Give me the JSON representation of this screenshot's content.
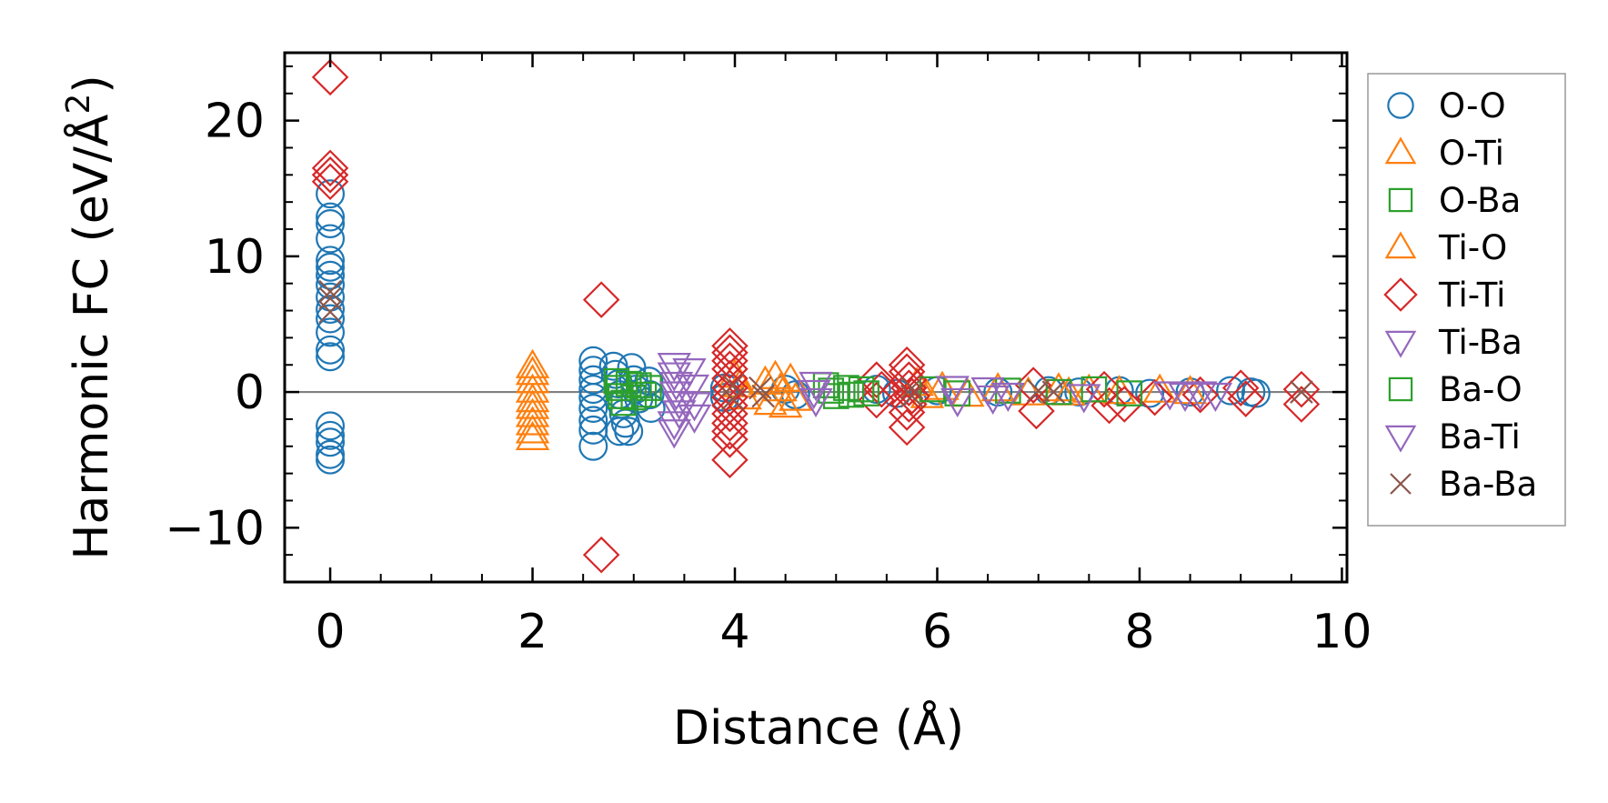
{
  "chart_data": {
    "type": "scatter",
    "title": "",
    "xlabel": "Distance (Å)",
    "ylabel_main": "Harmonic FC (eV/Å",
    "ylabel_sup": "2",
    "ylabel_close": ")",
    "xlim": [
      -0.45,
      10.05
    ],
    "ylim": [
      -14,
      25
    ],
    "xticks": [
      0,
      2,
      4,
      6,
      8,
      10
    ],
    "xtick_labels": [
      "0",
      "2",
      "4",
      "6",
      "8",
      "10"
    ],
    "yticks": [
      -10,
      0,
      10,
      20
    ],
    "ytick_labels": [
      "−10",
      "0",
      "10",
      "20"
    ],
    "zero_line": 0,
    "legend_position": "outside-right",
    "series": [
      {
        "name": "O-O",
        "marker": "circle",
        "filled": false,
        "color": "#1f77b4",
        "points": [
          [
            0,
            14.6
          ],
          [
            0,
            12.9
          ],
          [
            0,
            12.4
          ],
          [
            0,
            11.3
          ],
          [
            0,
            9.7
          ],
          [
            0,
            9.2
          ],
          [
            0,
            8.6
          ],
          [
            0,
            7.9
          ],
          [
            0,
            7.0
          ],
          [
            0,
            6.1
          ],
          [
            0,
            5.4
          ],
          [
            0,
            4.4
          ],
          [
            0,
            3.1
          ],
          [
            0,
            2.6
          ],
          [
            0,
            -2.5
          ],
          [
            0,
            -3.2
          ],
          [
            0,
            -3.7
          ],
          [
            0,
            -4.6
          ],
          [
            0,
            -5.0
          ],
          [
            2.6,
            2.3
          ],
          [
            2.6,
            1.6
          ],
          [
            2.6,
            0.9
          ],
          [
            2.6,
            0.2
          ],
          [
            2.6,
            -0.4
          ],
          [
            2.6,
            -1.2
          ],
          [
            2.6,
            -2.1
          ],
          [
            2.6,
            -2.8
          ],
          [
            2.6,
            -4.0
          ],
          [
            2.8,
            1.9
          ],
          [
            2.82,
            1.3
          ],
          [
            2.85,
            0.6
          ],
          [
            2.86,
            -0.2
          ],
          [
            2.88,
            -0.9
          ],
          [
            2.9,
            -1.6
          ],
          [
            2.92,
            -2.3
          ],
          [
            2.86,
            -2.9
          ],
          [
            2.95,
            -2.9
          ],
          [
            2.98,
            1.8
          ],
          [
            3.0,
            0.9
          ],
          [
            3.02,
            0.2
          ],
          [
            3.05,
            -0.5
          ],
          [
            3.15,
            0.8
          ],
          [
            3.16,
            -0.2
          ],
          [
            3.17,
            -1.2
          ],
          [
            3.9,
            0.3
          ],
          [
            3.9,
            -0.4
          ],
          [
            4.5,
            0.2
          ],
          [
            4.6,
            -0.2
          ],
          [
            5.4,
            0.2
          ],
          [
            5.6,
            -0.1
          ],
          [
            6.0,
            0.1
          ],
          [
            6.6,
            0.0
          ],
          [
            7.1,
            0.1
          ],
          [
            7.4,
            0.0
          ],
          [
            7.8,
            0.1
          ],
          [
            8.1,
            -0.1
          ],
          [
            8.5,
            0.0
          ],
          [
            8.9,
            0.1
          ],
          [
            9.1,
            0.0
          ],
          [
            9.15,
            -0.1
          ]
        ]
      },
      {
        "name": "O-Ti",
        "marker": "triangle-up",
        "filled": false,
        "color": "#ff7f0e",
        "points": [
          [
            2.0,
            1.9
          ],
          [
            2.0,
            1.4
          ],
          [
            2.0,
            0.8
          ],
          [
            2.0,
            0.1
          ],
          [
            2.0,
            -0.6
          ],
          [
            2.0,
            -1.1
          ],
          [
            2.0,
            -1.7
          ],
          [
            2.0,
            -2.3
          ],
          [
            2.0,
            -2.9
          ],
          [
            2.0,
            -3.4
          ]
        ]
      },
      {
        "name": "O-Ba",
        "marker": "square",
        "filled": false,
        "color": "#2ca02c",
        "points": [
          [
            2.83,
            0.8
          ],
          [
            2.85,
            0.3
          ],
          [
            2.87,
            -0.3
          ],
          [
            2.9,
            -0.8
          ],
          [
            2.95,
            0.6
          ],
          [
            3.0,
            -0.4
          ],
          [
            3.05,
            0.5
          ],
          [
            3.1,
            -0.2
          ],
          [
            3.15,
            0.3
          ]
        ]
      },
      {
        "name": "Ti-O",
        "marker": "triangle-up",
        "filled": false,
        "color": "#ff7f0e",
        "points": [
          [
            4.0,
            1.2
          ],
          [
            4.05,
            0.5
          ],
          [
            4.1,
            -0.4
          ],
          [
            4.3,
            0.7
          ],
          [
            4.35,
            -0.8
          ],
          [
            4.4,
            1.1
          ],
          [
            4.45,
            0.2
          ],
          [
            4.5,
            -1.0
          ],
          [
            4.55,
            0.9
          ],
          [
            4.6,
            -0.5
          ],
          [
            5.8,
            0.6
          ],
          [
            5.9,
            -0.3
          ],
          [
            6.05,
            0.3
          ],
          [
            6.3,
            -0.2
          ],
          [
            6.6,
            0.2
          ],
          [
            6.9,
            -0.1
          ],
          [
            7.2,
            0.2
          ],
          [
            7.3,
            -0.1
          ],
          [
            7.5,
            0.1
          ],
          [
            7.8,
            0.0
          ],
          [
            8.2,
            0.1
          ],
          [
            8.5,
            0.0
          ]
        ]
      },
      {
        "name": "Ti-Ti",
        "marker": "diamond",
        "filled": false,
        "color": "#d62728",
        "points": [
          [
            0,
            23.2
          ],
          [
            0,
            16.5
          ],
          [
            0,
            16.0
          ],
          [
            0,
            15.5
          ],
          [
            2.68,
            6.8
          ],
          [
            2.68,
            -12.0
          ],
          [
            3.95,
            3.4
          ],
          [
            3.95,
            2.9
          ],
          [
            3.95,
            2.3
          ],
          [
            3.95,
            1.7
          ],
          [
            3.95,
            1.0
          ],
          [
            3.95,
            0.3
          ],
          [
            3.95,
            -0.4
          ],
          [
            3.95,
            -1.0
          ],
          [
            3.95,
            -1.6
          ],
          [
            3.95,
            -2.3
          ],
          [
            3.95,
            -2.9
          ],
          [
            3.95,
            -3.5
          ],
          [
            3.95,
            -5.0
          ],
          [
            5.4,
            0.9
          ],
          [
            5.45,
            0.2
          ],
          [
            5.4,
            -0.6
          ],
          [
            5.7,
            2.0
          ],
          [
            5.7,
            1.5
          ],
          [
            5.72,
            0.9
          ],
          [
            5.72,
            0.3
          ],
          [
            5.75,
            -0.3
          ],
          [
            5.72,
            -0.9
          ],
          [
            5.7,
            -1.5
          ],
          [
            5.7,
            -2.6
          ],
          [
            6.95,
            0.5
          ],
          [
            6.98,
            -1.4
          ],
          [
            7.65,
            0.2
          ],
          [
            7.7,
            -1.0
          ],
          [
            7.85,
            -0.9
          ],
          [
            8.15,
            -0.4
          ],
          [
            8.6,
            -0.2
          ],
          [
            9.0,
            0.3
          ],
          [
            9.05,
            -0.5
          ],
          [
            9.6,
            0.2
          ],
          [
            9.6,
            -0.9
          ]
        ]
      },
      {
        "name": "Ti-Ba",
        "marker": "triangle-down",
        "filled": false,
        "color": "#9467bd",
        "points": [
          [
            3.4,
            2.0
          ],
          [
            3.4,
            1.3
          ],
          [
            3.42,
            0.6
          ],
          [
            3.42,
            -0.1
          ],
          [
            3.45,
            -0.8
          ],
          [
            3.45,
            -1.5
          ],
          [
            3.4,
            -2.3
          ],
          [
            3.4,
            -2.9
          ],
          [
            3.55,
            1.6
          ],
          [
            3.58,
            0.4
          ],
          [
            3.6,
            -0.9
          ],
          [
            3.6,
            -1.8
          ]
        ]
      },
      {
        "name": "Ba-O",
        "marker": "square",
        "filled": false,
        "color": "#2ca02c",
        "points": [
          [
            4.9,
            0.5
          ],
          [
            4.95,
            0.1
          ],
          [
            5.0,
            -0.3
          ],
          [
            5.1,
            0.3
          ],
          [
            5.15,
            -0.2
          ],
          [
            5.25,
            0.2
          ],
          [
            5.3,
            -0.1
          ],
          [
            5.95,
            0.2
          ],
          [
            6.2,
            -0.1
          ],
          [
            6.7,
            0.1
          ],
          [
            7.2,
            0.0
          ],
          [
            7.55,
            0.2
          ],
          [
            7.9,
            -0.1
          ]
        ]
      },
      {
        "name": "Ba-Ti",
        "marker": "triangle-down",
        "filled": false,
        "color": "#9467bd",
        "points": [
          [
            4.8,
            0.6
          ],
          [
            4.78,
            0.0
          ],
          [
            4.8,
            -0.6
          ],
          [
            6.15,
            0.3
          ],
          [
            6.2,
            -0.6
          ],
          [
            6.5,
            0.2
          ],
          [
            6.55,
            -0.4
          ],
          [
            6.7,
            -0.2
          ],
          [
            7.45,
            -0.3
          ],
          [
            8.3,
            -0.1
          ],
          [
            8.45,
            -0.2
          ],
          [
            8.6,
            -0.1
          ],
          [
            8.75,
            -0.2
          ]
        ]
      },
      {
        "name": "Ba-Ba",
        "marker": "x",
        "filled": false,
        "color": "#8c564b",
        "points": [
          [
            0,
            7.4
          ],
          [
            0,
            6.9
          ],
          [
            0,
            5.9
          ],
          [
            3.98,
            0.5
          ],
          [
            3.98,
            -0.5
          ],
          [
            4.25,
            0.3
          ],
          [
            4.28,
            -0.3
          ],
          [
            5.75,
            0.3
          ],
          [
            5.75,
            -0.3
          ],
          [
            7.0,
            0.1
          ],
          [
            7.15,
            0.0
          ],
          [
            9.6,
            0.0
          ]
        ]
      }
    ]
  }
}
